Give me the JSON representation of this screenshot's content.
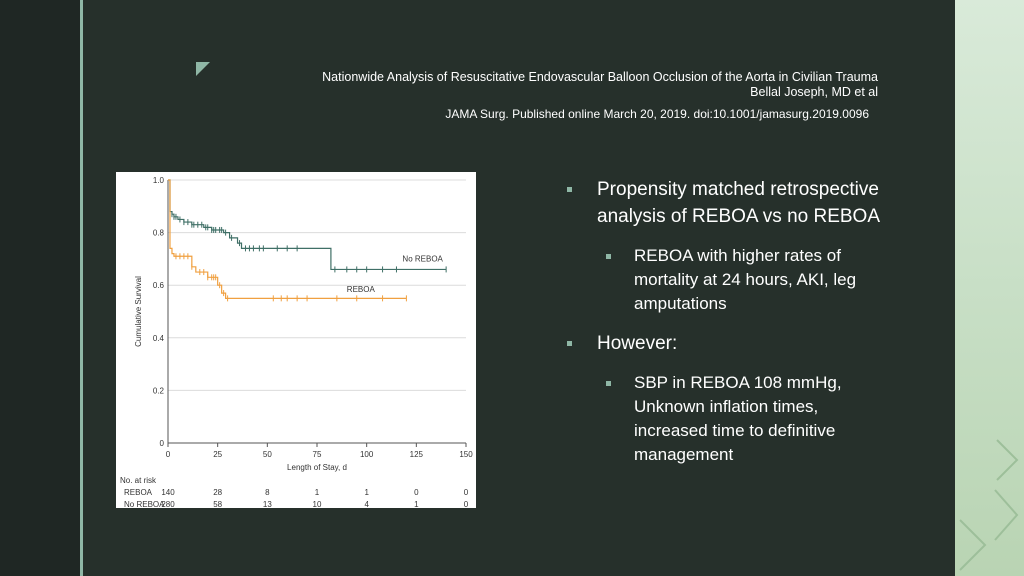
{
  "header": {
    "title_line1": "Nationwide Analysis of Resuscitative Endovascular Balloon Occlusion of the Aorta in Civilian Trauma",
    "title_line2": "Bellal Joseph, MD et al",
    "citation": "JAMA Surg. Published online March 20, 2019. doi:10.1001/jamasurg.2019.0096"
  },
  "bullets": {
    "b1": "Propensity matched retrospective analysis of REBOA vs no REBOA",
    "b1_sub": "REBOA with higher rates of mortality at 24 hours, AKI, leg amputations",
    "b2": "However:",
    "b2_sub": "SBP in REBOA 108 mmHg, Unknown inflation times, increased time to definitive management"
  },
  "colors": {
    "background": "#26302b",
    "accent": "#8fb7a6",
    "no_reboa": "#3f6f66",
    "reboa": "#f0a040"
  },
  "chart_data": {
    "type": "line",
    "title": "",
    "xlabel": "Length of Stay, d",
    "ylabel": "Cumulative Survival",
    "xlim": [
      0,
      150
    ],
    "ylim": [
      0,
      1.0
    ],
    "x_ticks": [
      "0",
      "25",
      "50",
      "75",
      "100",
      "125",
      "150"
    ],
    "y_ticks": [
      "0",
      "0.2",
      "0.4",
      "0.6",
      "0.8",
      "1.0"
    ],
    "series": [
      {
        "name": "No REBOA",
        "x": [
          0,
          1,
          2,
          3,
          5,
          8,
          12,
          18,
          22,
          28,
          31,
          35,
          37,
          82,
          140
        ],
        "y": [
          1.0,
          0.88,
          0.87,
          0.86,
          0.85,
          0.84,
          0.83,
          0.82,
          0.81,
          0.8,
          0.78,
          0.76,
          0.74,
          0.66,
          0.66
        ],
        "censor_x": [
          2,
          3,
          4,
          6,
          8,
          10,
          12,
          13,
          15,
          17,
          19,
          20,
          22,
          23,
          24,
          26,
          27,
          29,
          32,
          36,
          39,
          41,
          43,
          46,
          48,
          55,
          60,
          65,
          84,
          90,
          95,
          100,
          108,
          115,
          140
        ]
      },
      {
        "name": "REBOA",
        "x": [
          0,
          1,
          2,
          3,
          12,
          14,
          20,
          25,
          27,
          29,
          120
        ],
        "y": [
          1.0,
          0.74,
          0.72,
          0.71,
          0.67,
          0.65,
          0.63,
          0.6,
          0.57,
          0.55,
          0.55
        ],
        "censor_x": [
          4,
          6,
          8,
          10,
          12,
          16,
          18,
          20,
          22,
          23,
          24,
          26,
          28,
          30,
          53,
          57,
          60,
          65,
          70,
          85,
          95,
          108,
          120
        ]
      }
    ],
    "risk_table": {
      "header": "No. at risk",
      "rows": [
        {
          "label": "REBOA",
          "values": [
            "140",
            "28",
            "8",
            "1",
            "1",
            "0",
            "0"
          ]
        },
        {
          "label": "No REBOA",
          "values": [
            "280",
            "58",
            "13",
            "10",
            "4",
            "1",
            "0"
          ]
        }
      ]
    }
  }
}
